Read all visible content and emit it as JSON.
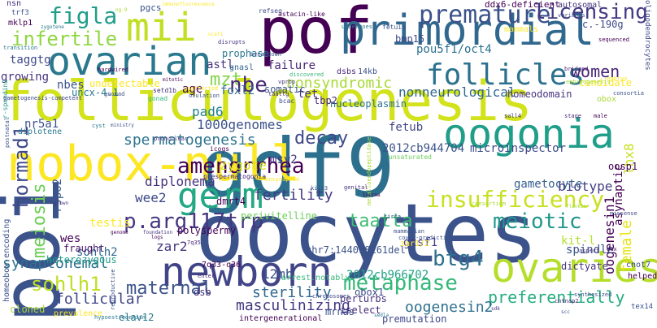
{
  "words": [
    {
      "text": "folliculogenesis",
      "color": "#d2e21b"
    },
    {
      "text": "oocytes",
      "color": "#3b528b"
    },
    {
      "text": "pof",
      "color": "#440154"
    },
    {
      "text": "gdf9",
      "color": "#2d708e"
    },
    {
      "text": "primordial",
      "color": "#31688e"
    },
    {
      "text": "nobox-null",
      "color": "#fde725"
    },
    {
      "text": "ovarian",
      "color": "#2a788e"
    },
    {
      "text": "poi",
      "color": "#3b528b"
    },
    {
      "text": "oogonia",
      "color": "#1f9e89"
    },
    {
      "text": "newborn",
      "color": "#414487"
    },
    {
      "text": "ovaries",
      "color": "#b5de2b"
    },
    {
      "text": "mii",
      "color": "#c2df23"
    },
    {
      "text": "germ",
      "color": "#22a884"
    },
    {
      "text": "follicles",
      "color": "#2c728e"
    },
    {
      "text": "insufficiency",
      "color": "#c8e020"
    },
    {
      "text": "premature",
      "color": "#3b528b"
    },
    {
      "text": "figla",
      "color": "#1f9e89"
    },
    {
      "text": "infertile",
      "color": "#90d743"
    },
    {
      "text": "licensing",
      "color": "#443a83"
    },
    {
      "text": "amenorrhea",
      "color": "#440154"
    },
    {
      "text": "p.arg117trp",
      "color": "#453781"
    },
    {
      "text": "taatta",
      "color": "#3dbc74"
    },
    {
      "text": "meiotic",
      "color": "#1f968b"
    },
    {
      "text": "metaphase",
      "color": "#35b779"
    },
    {
      "text": "maternal",
      "color": "#3b528b"
    },
    {
      "text": "sohlh1",
      "color": "#bddf26"
    },
    {
      "text": "hormad1",
      "color": "#3e4989"
    },
    {
      "text": "meiosis",
      "color": "#6ece58"
    },
    {
      "text": "btg4",
      "color": "#2e6f8e"
    },
    {
      "text": "women",
      "color": "#482475"
    },
    {
      "text": "mzt",
      "color": "#84d44b"
    },
    {
      "text": "nbe",
      "color": "#482878"
    },
    {
      "text": "nonsyndromic",
      "color": "#a8db34"
    },
    {
      "text": "decay",
      "color": "#3e4a89"
    },
    {
      "text": "spermatogenesis",
      "color": "#2c738e"
    },
    {
      "text": "fertility",
      "color": "#443983"
    },
    {
      "text": "preferentially",
      "color": "#27ad81"
    },
    {
      "text": "sterility",
      "color": "#31688e"
    },
    {
      "text": "synaptonemal",
      "color": "#2c718e"
    },
    {
      "text": "follicular",
      "color": "#3f4788"
    },
    {
      "text": "masculinizing",
      "color": "#443983"
    },
    {
      "text": "oogenesin2",
      "color": "#2d708e"
    },
    {
      "text": "1000genomes",
      "color": "#3b528b"
    },
    {
      "text": "zygote",
      "color": "#d8e219"
    },
    {
      "text": "diplonema",
      "color": "#46337e"
    },
    {
      "text": "wee2",
      "color": "#3e4989"
    },
    {
      "text": "zar2",
      "color": "#453781"
    },
    {
      "text": "12mb",
      "color": "#3b528b"
    },
    {
      "text": "biotype",
      "color": "#433e85"
    },
    {
      "text": "gametocyte",
      "color": "#355f8d"
    },
    {
      "text": "female",
      "color": "#e7e419"
    },
    {
      "text": "oogenesin1",
      "color": "#440154"
    },
    {
      "text": "2012cb944704",
      "color": "#3b528b"
    },
    {
      "text": "microinspector",
      "color": "#3e4a89"
    },
    {
      "text": "2012cb966702",
      "color": "#20a486"
    },
    {
      "text": "fetub",
      "color": "#414487"
    },
    {
      "text": "gtsf1",
      "color": "#433e85"
    },
    {
      "text": "msy2",
      "color": "#46327e"
    },
    {
      "text": "rspo2",
      "color": "#38598c"
    },
    {
      "text": "wes",
      "color": "#440154"
    },
    {
      "text": "testis",
      "color": "#fde725"
    },
    {
      "text": "sohlh2",
      "color": "#31688e"
    },
    {
      "text": "fraught",
      "color": "#481467"
    },
    {
      "text": "heterozygous",
      "color": "#1f9e89"
    },
    {
      "text": "nr5a1",
      "color": "#3b528b"
    },
    {
      "text": "diplotene",
      "color": "#2a788e"
    },
    {
      "text": "growing",
      "color": "#46327e"
    },
    {
      "text": "taggtg",
      "color": "#3e4989"
    },
    {
      "text": "nbes",
      "color": "#3b528b"
    },
    {
      "text": "pad6",
      "color": "#26828e"
    },
    {
      "text": "foxl2",
      "color": "#31688e"
    },
    {
      "text": "age",
      "color": "#440154"
    },
    {
      "text": "astl",
      "color": "#46337e"
    },
    {
      "text": "prophase",
      "color": "#2a788e"
    },
    {
      "text": "failure",
      "color": "#482677"
    },
    {
      "text": "somatic",
      "color": "#3b528b"
    },
    {
      "text": "gnasl",
      "color": "#31688e"
    },
    {
      "text": "bmp15",
      "color": "#3e4989"
    },
    {
      "text": "pou5f1/oct4",
      "color": "#2c718e"
    },
    {
      "text": "lhx8",
      "color": "#c8e020"
    },
    {
      "text": "asynaptic",
      "color": "#440154"
    },
    {
      "text": "spindle",
      "color": "#3b528b"
    },
    {
      "text": "kit-l",
      "color": "#b5de2b"
    },
    {
      "text": "dictyate",
      "color": "#46337e"
    },
    {
      "text": "cnot7",
      "color": "#3e4989"
    },
    {
      "text": "helped",
      "color": "#440154"
    },
    {
      "text": "tex14",
      "color": "#3b528b"
    },
    {
      "text": "oosp1",
      "color": "#440154"
    },
    {
      "text": "tet",
      "color": "#46327e"
    },
    {
      "text": "tbp2",
      "color": "#482475"
    },
    {
      "text": "nucleoplasmin",
      "color": "#2c728e"
    },
    {
      "text": "nonneurological",
      "color": "#31688e"
    },
    {
      "text": "homeodomain",
      "color": "#46337e"
    },
    {
      "text": "candidate",
      "color": "#fde725"
    },
    {
      "text": "obox",
      "color": "#a8db34"
    },
    {
      "text": "dmrt4",
      "color": "#440154"
    },
    {
      "text": "ddx6-deficient",
      "color": "#440154"
    },
    {
      "text": "autosomal",
      "color": "#46337e"
    },
    {
      "text": "c.-190g",
      "color": "#3e4989"
    },
    {
      "text": "mammals",
      "color": "#fde725"
    },
    {
      "text": "dsbs",
      "color": "#482878"
    },
    {
      "text": "14kb",
      "color": "#3b528b"
    },
    {
      "text": "undetectable",
      "color": "#fde725"
    },
    {
      "text": "uncx-4.1",
      "color": "#2a788e"
    },
    {
      "text": "polyspermy",
      "color": "#440154"
    },
    {
      "text": "7q33-q36",
      "color": "#440154"
    },
    {
      "text": "perivitelline",
      "color": "#6ece58"
    },
    {
      "text": "chr7:144098161del",
      "color": "#3b528b"
    },
    {
      "text": "zar1/2",
      "color": "#fde725"
    },
    {
      "text": "obox1",
      "color": "#3e4a89"
    },
    {
      "text": "perturbs",
      "color": "#46327e"
    },
    {
      "text": "iselect",
      "color": "#482878"
    },
    {
      "text": "premutation",
      "color": "#3e4989"
    },
    {
      "text": "elav12",
      "color": "#2a788e"
    },
    {
      "text": "intergenerational",
      "color": "#440154"
    },
    {
      "text": "mrnas",
      "color": "#3b528b"
    },
    {
      "text": "dsb",
      "color": "#46337e"
    },
    {
      "text": "arrest.notably",
      "color": "#35b779"
    },
    {
      "text": "cloned",
      "color": "#a8db34"
    },
    {
      "text": "prevalence",
      "color": "#fde725"
    },
    {
      "text": "homeobox-encoding",
      "color": "#3b528b"
    },
    {
      "text": "nsn",
      "color": "#46337e"
    },
    {
      "text": "trf3",
      "color": "#3b528b"
    },
    {
      "text": "mklp1",
      "color": "#440154"
    },
    {
      "text": "zygotene",
      "color": "#2a788e"
    },
    {
      "text": "r-spondin2",
      "color": "#1f9e89"
    },
    {
      "text": "pgcs",
      "color": "#3b528b"
    },
    {
      "text": "immunofluorescence",
      "color": "#fde725"
    },
    {
      "text": "refseq",
      "color": "#3e4989"
    },
    {
      "text": "astacin-like",
      "color": "#440154"
    },
    {
      "text": "undergoes",
      "color": "#2a788e"
    },
    {
      "text": "fetuin",
      "color": "#3b528b"
    },
    {
      "text": "variants",
      "color": "#3e4989"
    },
    {
      "text": "bridged",
      "color": "#482878"
    },
    {
      "text": "embryogenesis",
      "color": "#a8db34"
    },
    {
      "text": "setd1b",
      "color": "#46327e"
    },
    {
      "text": "gonad",
      "color": "#35b779"
    },
    {
      "text": "mitotic",
      "color": "#440154"
    },
    {
      "text": "ovulation",
      "color": "#3b528b"
    },
    {
      "text": "unaffected",
      "color": "#fde725"
    },
    {
      "text": "taattg",
      "color": "#46337e"
    },
    {
      "text": "bcac",
      "color": "#3e4989"
    },
    {
      "text": "vprbp",
      "color": "#46337e"
    },
    {
      "text": "discovered",
      "color": "#35b779"
    },
    {
      "text": "ministry",
      "color": "#3b528b"
    },
    {
      "text": "cyst",
      "color": "#2a788e"
    },
    {
      "text": "icogs",
      "color": "#440154"
    },
    {
      "text": "pronuclear",
      "color": "#46337e"
    },
    {
      "text": "prespermatogonia",
      "color": "#482878"
    },
    {
      "text": "unsaturated",
      "color": "#6ece58"
    },
    {
      "text": "consortium",
      "color": "#a8db34"
    },
    {
      "text": "cover-prediction",
      "color": "#3b528b"
    },
    {
      "text": "metalloendopeptidase",
      "color": "#a8db34"
    },
    {
      "text": "chromosomes",
      "color": "#3e4989"
    },
    {
      "text": "sall4",
      "color": "#46337e"
    },
    {
      "text": "mammalian",
      "color": "#3b528b"
    },
    {
      "text": "stage",
      "color": "#482878"
    },
    {
      "text": "male",
      "color": "#440154"
    },
    {
      "text": "gnomad",
      "color": "#3b528b"
    },
    {
      "text": "hardwired",
      "color": "#440154"
    },
    {
      "text": "gametogenesis-competent",
      "color": "#3e4989"
    },
    {
      "text": "transition",
      "color": "#2a788e"
    },
    {
      "text": "ng-9",
      "color": "#a8db34"
    },
    {
      "text": "disrupts",
      "color": "#46337e"
    },
    {
      "text": "breakdown",
      "color": "#3b528b"
    },
    {
      "text": "ncaf1",
      "color": "#fde725"
    },
    {
      "text": "genome",
      "color": "#440154"
    },
    {
      "text": "foundation",
      "color": "#46337e"
    },
    {
      "text": "reproductive",
      "color": "#3b528b"
    },
    {
      "text": "hypoestrogenism",
      "color": "#2a788e"
    },
    {
      "text": "enter",
      "color": "#482878"
    },
    {
      "text": "circa",
      "color": "#3e4989"
    },
    {
      "text": "kif23",
      "color": "#3b528b"
    },
    {
      "text": "genital",
      "color": "#46337e"
    },
    {
      "text": "lncrna",
      "color": "#440154"
    },
    {
      "text": "cntnap2",
      "color": "#482878"
    },
    {
      "text": "synthesized",
      "color": "#3b528b"
    },
    {
      "text": "aspect",
      "color": "#46337e"
    },
    {
      "text": "sequenced",
      "color": "#440154"
    },
    {
      "text": "sedla",
      "color": "#2a788e"
    },
    {
      "text": "unsynapsed",
      "color": "#fde725"
    },
    {
      "text": "postnatal",
      "color": "#3b528b"
    },
    {
      "text": "oligodendrocytes",
      "color": "#3e4989"
    },
    {
      "text": "grown",
      "color": "#46337e"
    },
    {
      "text": "embryo",
      "color": "#fde725"
    },
    {
      "text": "flankin",
      "color": "#a8db34"
    },
    {
      "text": "dux",
      "color": "#440154"
    },
    {
      "text": "sdk",
      "color": "#46337e"
    },
    {
      "text": "scc",
      "color": "#3b528b"
    },
    {
      "text": "logs",
      "color": "#440154"
    },
    {
      "text": "7q35",
      "color": "#482878"
    },
    {
      "text": "missense",
      "color": "#3e4989"
    },
    {
      "text": "consortia",
      "color": "#3b528b"
    }
  ]
}
